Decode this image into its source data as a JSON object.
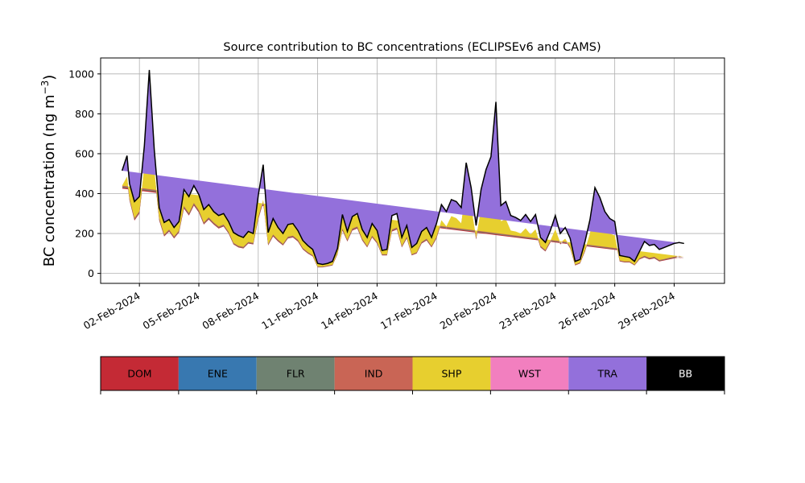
{
  "chart_data": {
    "type": "area",
    "stacked": true,
    "title": "Source contribution to BC concentrations (ECLIPSEv6 and CAMS)",
    "xlabel": "",
    "ylabel_main": "BC concentration (ng m",
    "ylabel_sup": "−3",
    "ylabel_close": ")",
    "xlim": [
      "2024-01-31T01:00",
      "2024-03-02T13:00"
    ],
    "ylim": [
      -50,
      1080
    ],
    "grid": true,
    "y_ticks": [
      0,
      200,
      400,
      600,
      800,
      1000
    ],
    "x_ticks": [
      {
        "date": "2024-02-02",
        "label": "02-Feb-2024"
      },
      {
        "date": "2024-02-05",
        "label": "05-Feb-2024"
      },
      {
        "date": "2024-02-08",
        "label": "08-Feb-2024"
      },
      {
        "date": "2024-02-11",
        "label": "11-Feb-2024"
      },
      {
        "date": "2024-02-14",
        "label": "14-Feb-2024"
      },
      {
        "date": "2024-02-17",
        "label": "17-Feb-2024"
      },
      {
        "date": "2024-02-20",
        "label": "20-Feb-2024"
      },
      {
        "date": "2024-02-23",
        "label": "23-Feb-2024"
      },
      {
        "date": "2024-02-26",
        "label": "26-Feb-2024"
      },
      {
        "date": "2024-02-29",
        "label": "29-Feb-2024"
      }
    ],
    "legend_placement": "bottom",
    "legend": [
      {
        "name": "DOM",
        "color": "#c42a35",
        "text_color": "#000000"
      },
      {
        "name": "ENE",
        "color": "#3878b0",
        "text_color": "#000000"
      },
      {
        "name": "FLR",
        "color": "#6f8271",
        "text_color": "#000000"
      },
      {
        "name": "IND",
        "color": "#c96555",
        "text_color": "#000000"
      },
      {
        "name": "SHP",
        "color": "#e7cf2f",
        "text_color": "#000000"
      },
      {
        "name": "WST",
        "color": "#f27fbf",
        "text_color": "#000000"
      },
      {
        "name": "TRA",
        "color": "#9370db",
        "text_color": "#000000"
      },
      {
        "name": "BB",
        "color": "#000000",
        "text_color": "#ffffff"
      }
    ],
    "x": [
      "2024-02-01T03:00",
      "2024-02-01T09:00",
      "2024-02-01T12:00",
      "2024-02-01T18:00",
      "2024-02-02T00:00",
      "2024-02-02T06:00",
      "2024-02-02T12:00",
      "2024-02-02T18:00",
      "2024-02-03T00:00",
      "2024-02-03T06:00",
      "2024-02-03T12:00",
      "2024-02-03T18:00",
      "2024-02-04T00:00",
      "2024-02-04T06:00",
      "2024-02-04T12:00",
      "2024-02-04T18:00",
      "2024-02-05T00:00",
      "2024-02-05T06:00",
      "2024-02-05T12:00",
      "2024-02-05T18:00",
      "2024-02-06T00:00",
      "2024-02-06T06:00",
      "2024-02-06T12:00",
      "2024-02-06T18:00",
      "2024-02-07T00:00",
      "2024-02-07T06:00",
      "2024-02-07T12:00",
      "2024-02-07T18:00",
      "2024-02-08T00:00",
      "2024-02-08T06:00",
      "2024-02-08T12:00",
      "2024-02-08T18:00",
      "2024-02-09T00:00",
      "2024-02-09T06:00",
      "2024-02-09T12:00",
      "2024-02-09T18:00",
      "2024-02-10T00:00",
      "2024-02-10T06:00",
      "2024-02-10T12:00",
      "2024-02-10T18:00",
      "2024-02-11T00:00",
      "2024-02-11T06:00",
      "2024-02-11T12:00",
      "2024-02-11T18:00",
      "2024-02-12T00:00",
      "2024-02-12T06:00",
      "2024-02-12T12:00",
      "2024-02-12T18:00",
      "2024-02-13T00:00",
      "2024-02-13T06:00",
      "2024-02-13T12:00",
      "2024-02-13T18:00",
      "2024-02-14T00:00",
      "2024-02-14T06:00",
      "2024-02-14T12:00",
      "2024-02-14T18:00",
      "2024-02-15T00:00",
      "2024-02-15T06:00",
      "2024-02-15T12:00",
      "2024-02-15T18:00",
      "2024-02-16T00:00",
      "2024-02-16T06:00",
      "2024-02-16T12:00",
      "2024-02-16T18:00",
      "2024-02-17T00:00",
      "2024-02-17T06:00",
      "2024-02-17T12:00",
      "2024-02-17T18:00",
      "2024-02-18T00:00",
      "2024-02-18T06:00",
      "2024-02-18T12:00",
      "2024-02-18T18:00",
      "2024-02-19T00:00",
      "2024-02-19T06:00",
      "2024-02-19T12:00",
      "2024-02-19T18:00",
      "2024-02-20T00:00",
      "2024-02-20T06:00",
      "2024-02-20T12:00",
      "2024-02-20T18:00",
      "2024-02-21T00:00",
      "2024-02-21T06:00",
      "2024-02-21T12:00",
      "2024-02-21T18:00",
      "2024-02-22T00:00",
      "2024-02-22T06:00",
      "2024-02-22T12:00",
      "2024-02-22T18:00",
      "2024-02-23T00:00",
      "2024-02-23T06:00",
      "2024-02-23T12:00",
      "2024-02-23T18:00",
      "2024-02-24T00:00",
      "2024-02-24T06:00",
      "2024-02-24T12:00",
      "2024-02-24T18:00",
      "2024-02-25T00:00",
      "2024-02-25T06:00",
      "2024-02-25T12:00",
      "2024-02-25T18:00",
      "2024-02-26T00:00",
      "2024-02-26T06:00",
      "2024-02-26T12:00",
      "2024-02-26T18:00",
      "2024-02-27T00:00",
      "2024-02-27T06:00",
      "2024-02-27T12:00",
      "2024-02-27T18:00",
      "2024-02-28T00:00",
      "2024-02-28T06:00",
      "2024-02-28T12:00",
      "2024-02-28T18:00",
      "2024-02-29T00:00",
      "2024-02-29T06:00",
      "2024-02-29T12:00",
      "2024-02-29T18:00",
      "2024-03-01T00:00",
      "2024-03-01T06:00",
      "2024-03-01T12:00"
    ],
    "total": [
      515,
      590,
      450,
      360,
      385,
      640,
      1020,
      620,
      330,
      255,
      270,
      230,
      260,
      420,
      385,
      440,
      395,
      320,
      345,
      310,
      290,
      300,
      260,
      205,
      190,
      180,
      210,
      200,
      390,
      545,
      205,
      275,
      230,
      200,
      245,
      250,
      215,
      165,
      140,
      120,
      50,
      45,
      50,
      60,
      125,
      295,
      210,
      285,
      300,
      220,
      180,
      250,
      215,
      115,
      120,
      290,
      300,
      180,
      240,
      130,
      150,
      210,
      230,
      180,
      250,
      345,
      310,
      370,
      360,
      330,
      555,
      430,
      240,
      420,
      520,
      585,
      860,
      340,
      360,
      290,
      280,
      265,
      295,
      260,
      295,
      180,
      155,
      215,
      290,
      200,
      230,
      175,
      60,
      70,
      160,
      270,
      430,
      380,
      310,
      275,
      260,
      90,
      85,
      80,
      60,
      110,
      160,
      140,
      145,
      120,
      130,
      140,
      150,
      155,
      150
    ],
    "dom": [
      425,
      470,
      365,
      265,
      300,
      520,
      840,
      505,
      265,
      185,
      210,
      175,
      205,
      325,
      290,
      340,
      305,
      245,
      270,
      245,
      225,
      235,
      200,
      145,
      130,
      125,
      150,
      145,
      270,
      355,
      140,
      185,
      160,
      140,
      175,
      180,
      160,
      120,
      100,
      85,
      30,
      30,
      35,
      40,
      95,
      215,
      160,
      215,
      225,
      165,
      130,
      180,
      150,
      90,
      90,
      210,
      220,
      130,
      175,
      90,
      100,
      150,
      165,
      130,
      175,
      255,
      225,
      275,
      265,
      240,
      420,
      320,
      170,
      310,
      390,
      440,
      640,
      250,
      260,
      205,
      200,
      190,
      215,
      185,
      210,
      130,
      110,
      155,
      210,
      145,
      165,
      125,
      40,
      50,
      110,
      190,
      320,
      275,
      220,
      190,
      180,
      60,
      55,
      55,
      40,
      70,
      80,
      70,
      75,
      60,
      65,
      70,
      75,
      80,
      75
    ],
    "mid": [
      15,
      15,
      12,
      12,
      12,
      18,
      25,
      16,
      12,
      10,
      10,
      10,
      10,
      13,
      12,
      13,
      12,
      10,
      11,
      10,
      10,
      10,
      9,
      8,
      8,
      8,
      8,
      8,
      12,
      14,
      8,
      10,
      9,
      8,
      9,
      9,
      9,
      7,
      7,
      6,
      4,
      4,
      4,
      4,
      6,
      10,
      8,
      10,
      10,
      9,
      7,
      9,
      8,
      6,
      6,
      10,
      10,
      7,
      9,
      6,
      6,
      8,
      9,
      7,
      9,
      12,
      11,
      12,
      12,
      11,
      16,
      13,
      9,
      13,
      15,
      17,
      22,
      12,
      12,
      10,
      10,
      10,
      11,
      10,
      11,
      8,
      7,
      9,
      11,
      9,
      9,
      8,
      5,
      5,
      8,
      10,
      14,
      12,
      11,
      10,
      10,
      5,
      5,
      5,
      4,
      6,
      8,
      8,
      8,
      7,
      7,
      8,
      8,
      8,
      8
    ]
  }
}
